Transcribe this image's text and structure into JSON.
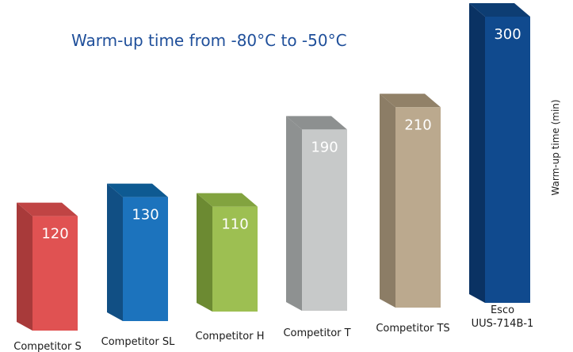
{
  "chart_data": {
    "type": "bar",
    "title": "Warm-up time from -80°C to -50°C",
    "ylabel": "Warm-up time (min)",
    "xlabel": "",
    "ylim": [
      0,
      300
    ],
    "categories": [
      [
        "Competitor S"
      ],
      [
        "Competitor SL"
      ],
      [
        "Competitor H"
      ],
      [
        "Competitor T"
      ],
      [
        "Competitor TS"
      ],
      [
        "Esco",
        "UUS-714B-1"
      ]
    ],
    "values": [
      120,
      130,
      110,
      190,
      210,
      300
    ],
    "colors": [
      {
        "front": "#e05252",
        "side": "#a83a3a",
        "top": "#c04444"
      },
      {
        "front": "#1c73bd",
        "side": "#114f84",
        "top": "#0e5a92"
      },
      {
        "front": "#9dbf52",
        "side": "#6c8a32",
        "top": "#82a33f"
      },
      {
        "front": "#c7c9c9",
        "side": "#8e9191",
        "top": "#8d9090"
      },
      {
        "front": "#bba98e",
        "side": "#8c7d66",
        "top": "#918168"
      },
      {
        "front": "#104a8e",
        "side": "#0a3263",
        "top": "#0d3d73"
      }
    ]
  }
}
